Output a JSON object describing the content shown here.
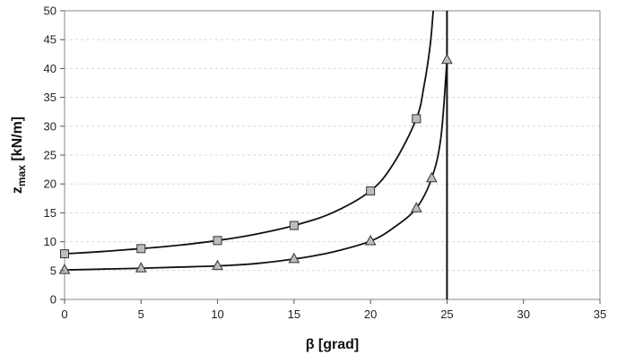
{
  "chart_data": {
    "type": "line",
    "xlabel": "β [grad]",
    "ylabel": {
      "main": "z",
      "sub": "max",
      "unit": " [kN/m]"
    },
    "xlim": [
      0,
      35
    ],
    "ylim": [
      0,
      50
    ],
    "x_ticks": [
      0,
      5,
      10,
      15,
      20,
      25,
      30,
      35
    ],
    "y_ticks": [
      0,
      5,
      10,
      15,
      20,
      25,
      30,
      35,
      40,
      45,
      50
    ],
    "grid": {
      "horizontal": true,
      "vertical": false
    },
    "legend": "none",
    "series": [
      {
        "marker": "square",
        "marker_color": "#bdbdbd",
        "line_color": "#111111",
        "points": [
          {
            "x": 0,
            "y": 7.9
          },
          {
            "x": 5,
            "y": 8.8
          },
          {
            "x": 10,
            "y": 10.2
          },
          {
            "x": 15,
            "y": 12.8
          },
          {
            "x": 20,
            "y": 18.8
          },
          {
            "x": 23,
            "y": 31.3
          }
        ],
        "curve": [
          {
            "x": 0,
            "y": 7.9
          },
          {
            "x": 2.5,
            "y": 8.3
          },
          {
            "x": 5,
            "y": 8.8
          },
          {
            "x": 7.5,
            "y": 9.4
          },
          {
            "x": 10,
            "y": 10.2
          },
          {
            "x": 12.5,
            "y": 11.3
          },
          {
            "x": 15,
            "y": 12.8
          },
          {
            "x": 17.5,
            "y": 15.0
          },
          {
            "x": 20,
            "y": 18.8
          },
          {
            "x": 21.5,
            "y": 23.5
          },
          {
            "x": 23,
            "y": 31.3
          },
          {
            "x": 23.5,
            "y": 37.0
          },
          {
            "x": 23.9,
            "y": 44.0
          },
          {
            "x": 24.1,
            "y": 50.0
          }
        ]
      },
      {
        "marker": "triangle",
        "marker_color": "#bdbdbd",
        "line_color": "#111111",
        "points": [
          {
            "x": 0,
            "y": 5.1
          },
          {
            "x": 5,
            "y": 5.4
          },
          {
            "x": 10,
            "y": 5.8
          },
          {
            "x": 15,
            "y": 7.0
          },
          {
            "x": 20,
            "y": 10.1
          },
          {
            "x": 23,
            "y": 15.8
          },
          {
            "x": 24,
            "y": 21.0
          },
          {
            "x": 25,
            "y": 41.5
          }
        ],
        "curve": [
          {
            "x": 0,
            "y": 5.1
          },
          {
            "x": 2.5,
            "y": 5.25
          },
          {
            "x": 5,
            "y": 5.4
          },
          {
            "x": 7.5,
            "y": 5.6
          },
          {
            "x": 10,
            "y": 5.8
          },
          {
            "x": 12.5,
            "y": 6.2
          },
          {
            "x": 15,
            "y": 7.0
          },
          {
            "x": 17.5,
            "y": 8.2
          },
          {
            "x": 20,
            "y": 10.1
          },
          {
            "x": 21.5,
            "y": 12.4
          },
          {
            "x": 23,
            "y": 15.8
          },
          {
            "x": 24,
            "y": 21.0
          },
          {
            "x": 24.6,
            "y": 28.0
          },
          {
            "x": 25,
            "y": 41.5
          }
        ]
      }
    ],
    "vertical_lines": [
      25
    ]
  }
}
